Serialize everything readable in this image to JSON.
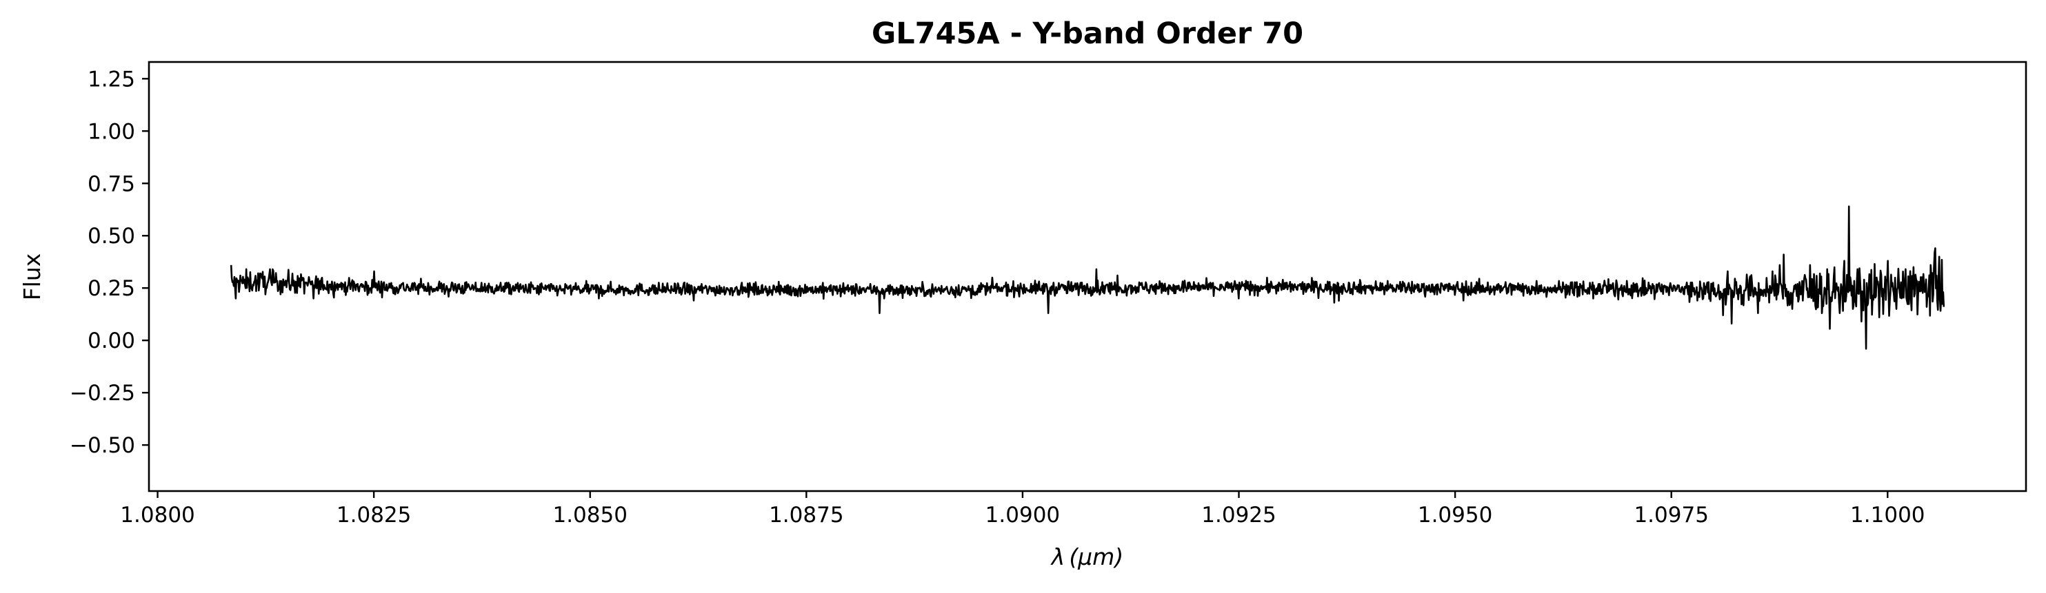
{
  "chart_data": {
    "type": "line",
    "title": "GL745A - Y-band Order 70",
    "xlabel_symbol": "λ",
    "xlabel_unit": "(μm)",
    "ylabel": "Flux",
    "xlim": [
      1.0799,
      1.1016
    ],
    "ylim": [
      -0.72,
      1.33
    ],
    "x_ticks": [
      1.08,
      1.0825,
      1.085,
      1.0875,
      1.09,
      1.0925,
      1.095,
      1.0975,
      1.1
    ],
    "x_tick_labels": [
      "1.0800",
      "1.0825",
      "1.0850",
      "1.0875",
      "1.0900",
      "1.0925",
      "1.0950",
      "1.0975",
      "1.1000"
    ],
    "y_ticks": [
      -0.5,
      -0.25,
      0.0,
      0.25,
      0.5,
      0.75,
      1.0,
      1.25
    ],
    "y_tick_labels": [
      "−0.50",
      "−0.25",
      "0.00",
      "0.25",
      "0.50",
      "0.75",
      "1.00",
      "1.25"
    ],
    "grid": false,
    "line_color": "#000000",
    "series": [
      {
        "x_start": 1.08085,
        "x_end": 1.10065,
        "baseline": [
          [
            1.08085,
            0.275
          ],
          [
            1.0812,
            0.28
          ],
          [
            1.0815,
            0.275
          ],
          [
            1.082,
            0.262
          ],
          [
            1.0825,
            0.255
          ],
          [
            1.0835,
            0.25
          ],
          [
            1.085,
            0.243
          ],
          [
            1.0875,
            0.243
          ],
          [
            1.089,
            0.24
          ],
          [
            1.09,
            0.248
          ],
          [
            1.0925,
            0.255
          ],
          [
            1.095,
            0.25
          ],
          [
            1.0975,
            0.245
          ],
          [
            1.0985,
            0.24
          ],
          [
            1.0995,
            0.235
          ],
          [
            1.10065,
            0.25
          ]
        ],
        "features": [
          [
            1.08085,
            0.36
          ],
          [
            1.0809,
            0.2
          ],
          [
            1.0813,
            0.34
          ],
          [
            1.0818,
            0.2
          ],
          [
            1.0825,
            0.33
          ],
          [
            1.0851,
            0.2
          ],
          [
            1.0862,
            0.19
          ],
          [
            1.0874,
            0.21
          ],
          [
            1.08835,
            0.13
          ],
          [
            1.0884,
            0.2
          ],
          [
            1.0903,
            0.13
          ],
          [
            1.08965,
            0.3
          ],
          [
            1.09085,
            0.34
          ],
          [
            1.0911,
            0.31
          ],
          [
            1.0925,
            0.2
          ],
          [
            1.0936,
            0.18
          ],
          [
            1.0951,
            0.19
          ],
          [
            1.0966,
            0.2
          ],
          [
            1.0978,
            0.19
          ],
          [
            1.0981,
            0.12
          ],
          [
            1.09815,
            0.33
          ],
          [
            1.0982,
            0.08
          ],
          [
            1.0985,
            0.13
          ],
          [
            1.09875,
            0.36
          ],
          [
            1.0988,
            0.41
          ],
          [
            1.0989,
            0.15
          ],
          [
            1.0991,
            0.36
          ],
          [
            1.0993,
            0.34
          ],
          [
            1.09945,
            0.13
          ],
          [
            1.09955,
            0.64
          ],
          [
            1.0996,
            0.15
          ],
          [
            1.09965,
            0.34
          ],
          [
            1.0997,
            0.09
          ],
          [
            1.09975,
            -0.04
          ],
          [
            1.0998,
            0.31
          ],
          [
            1.0999,
            0.11
          ],
          [
            1.1,
            0.38
          ],
          [
            1.1001,
            0.15
          ],
          [
            1.1003,
            0.35
          ],
          [
            1.10045,
            0.16
          ],
          [
            1.1005,
            0.36
          ],
          [
            1.10055,
            0.44
          ],
          [
            1.1006,
            0.4
          ],
          [
            1.10065,
            0.16
          ]
        ],
        "noise": [
          [
            1.0808,
            0.028
          ],
          [
            1.0815,
            0.026
          ],
          [
            1.082,
            0.018
          ],
          [
            1.083,
            0.016
          ],
          [
            1.085,
            0.015
          ],
          [
            1.0875,
            0.014
          ],
          [
            1.09,
            0.016
          ],
          [
            1.0925,
            0.016
          ],
          [
            1.095,
            0.016
          ],
          [
            1.0975,
            0.02
          ],
          [
            1.0985,
            0.035
          ],
          [
            1.099,
            0.05
          ],
          [
            1.1,
            0.055
          ],
          [
            1.10065,
            0.06
          ]
        ]
      }
    ]
  }
}
